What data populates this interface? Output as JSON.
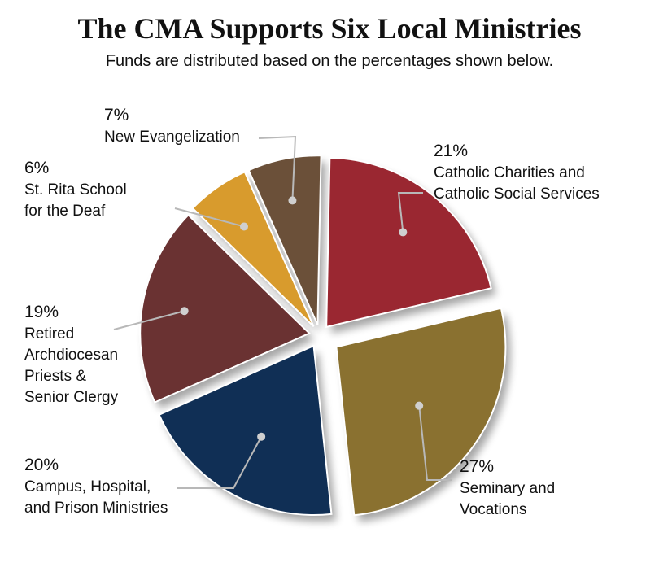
{
  "title": "The CMA Supports Six Local Ministries",
  "subtitle": "Funds are distributed based on the percentages shown below.",
  "chart_data": {
    "type": "pie",
    "title": "The CMA Supports Six Local Ministries",
    "subtitle": "Funds are distributed based on the percentages shown below.",
    "legend": "none (callout labels)",
    "slices": [
      {
        "name": "Catholic Charities and Catholic Social Services",
        "value": 21,
        "pct_label": "21%",
        "label_lines": [
          "Catholic Charities and",
          "Catholic Social Services"
        ],
        "color": "#9a2731"
      },
      {
        "name": "Seminary and Vocations",
        "value": 27,
        "pct_label": "27%",
        "label_lines": [
          "Seminary and",
          "Vocations"
        ],
        "color": "#8a7130"
      },
      {
        "name": "Campus, Hospital, and Prison Ministries",
        "value": 20,
        "pct_label": "20%",
        "label_lines": [
          "Campus, Hospital,",
          "and Prison Ministries"
        ],
        "color": "#102f55"
      },
      {
        "name": "Retired Archdiocesan Priests & Senior Clergy",
        "value": 19,
        "pct_label": "19%",
        "label_lines": [
          "Retired",
          "Archdiocesan",
          "Priests &",
          "Senior Clergy"
        ],
        "color": "#6a3232"
      },
      {
        "name": "St. Rita School for the Deaf",
        "value": 6,
        "pct_label": "6%",
        "label_lines": [
          "St. Rita School",
          "for the Deaf"
        ],
        "color": "#d89b2d"
      },
      {
        "name": "New Evangelization",
        "value": 7,
        "pct_label": "7%",
        "label_lines": [
          "New Evangelization"
        ],
        "color": "#6b5039"
      }
    ]
  }
}
